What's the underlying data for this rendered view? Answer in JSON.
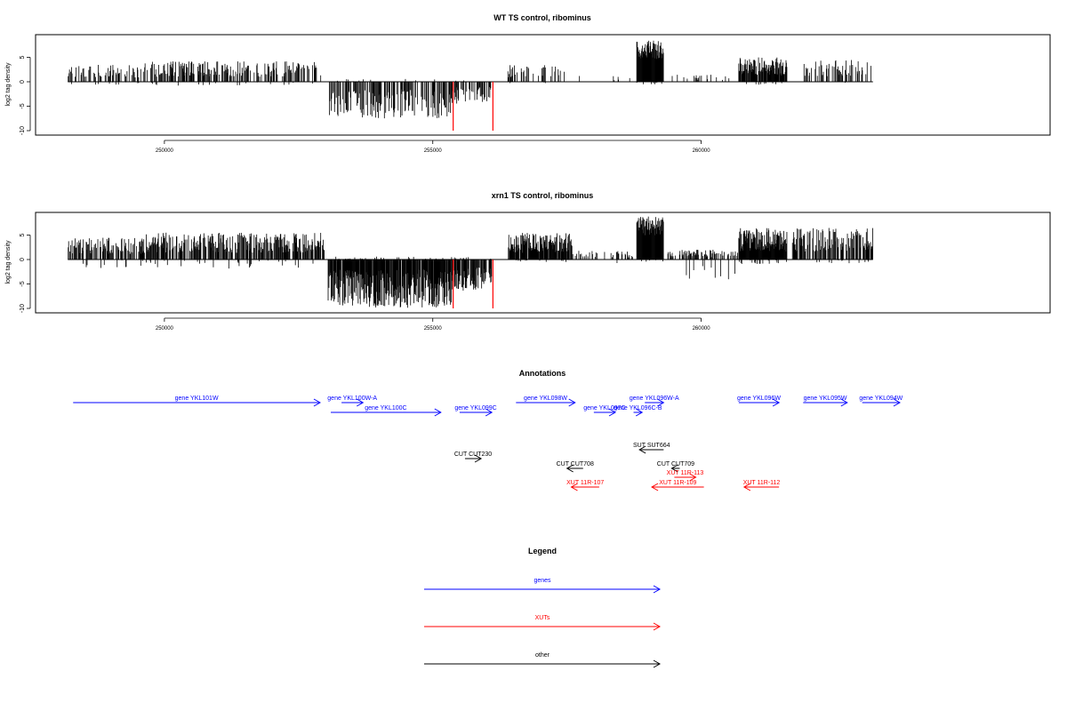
{
  "colors": {
    "genes": "#0000ff",
    "xuts": "#ff0000",
    "other": "#000000",
    "signal": "#000000",
    "highlight": "#ff0000"
  },
  "chart_data": [
    {
      "type": "bar",
      "title": "WT TS control, ribominus",
      "ylabel": "log2 tag density",
      "ylim": [
        -10,
        10
      ],
      "yticks": [
        -10,
        -5,
        0,
        5
      ],
      "xlim": [
        247600,
        266500
      ],
      "xticks": [
        250000,
        255000,
        260000
      ],
      "xticklabels": [
        "250000",
        "255000",
        "260000"
      ],
      "baseline_range": [
        248200,
        263200
      ],
      "segments": [
        {
          "from": 248200,
          "to": 249600,
          "pos_max": 3.5,
          "neg_max": 0.6,
          "density": 0.35,
          "seed": 11
        },
        {
          "from": 249600,
          "to": 253000,
          "pos_max": 4.2,
          "neg_max": 0.8,
          "density": 0.45,
          "seed": 12
        },
        {
          "from": 253050,
          "to": 255350,
          "pos_max": 0.6,
          "neg_max": 7.5,
          "density": 0.5,
          "seed": 13,
          "neg": true
        },
        {
          "from": 255350,
          "to": 256100,
          "pos_max": 0.5,
          "neg_max": 4.5,
          "density": 0.45,
          "seed": 14,
          "neg": true
        },
        {
          "from": 256400,
          "to": 257500,
          "pos_max": 3.5,
          "neg_max": 0.4,
          "density": 0.25,
          "seed": 15
        },
        {
          "from": 257500,
          "to": 258800,
          "pos_max": 1.2,
          "neg_max": 2.0,
          "density": 0.06,
          "seed": 16
        },
        {
          "from": 258800,
          "to": 259300,
          "pos_max": 8.5,
          "neg_max": 0.5,
          "density": 1.0,
          "seed": 17,
          "dense": true
        },
        {
          "from": 259300,
          "to": 260600,
          "pos_max": 1.5,
          "neg_max": 2.2,
          "density": 0.08,
          "seed": 18
        },
        {
          "from": 260700,
          "to": 261600,
          "pos_max": 5.0,
          "neg_max": 0.6,
          "density": 0.9,
          "seed": 19
        },
        {
          "from": 261900,
          "to": 263200,
          "pos_max": 4.5,
          "neg_max": 0.5,
          "density": 0.35,
          "seed": 20
        }
      ],
      "highlights": [
        {
          "x": 255380,
          "y": -10
        },
        {
          "x": 256120,
          "y": -10
        }
      ]
    },
    {
      "type": "bar",
      "title": "xrn1 TS control, ribominus",
      "ylabel": "log2 tag density",
      "ylim": [
        -10,
        10
      ],
      "yticks": [
        -10,
        -5,
        0,
        5
      ],
      "xlim": [
        247600,
        266500
      ],
      "xticks": [
        250000,
        255000,
        260000
      ],
      "xticklabels": [
        "250000",
        "255000",
        "260000"
      ],
      "baseline_range": [
        248200,
        263200
      ],
      "segments": [
        {
          "from": 248200,
          "to": 249600,
          "pos_max": 4.5,
          "neg_max": 1.8,
          "density": 0.55,
          "seed": 31
        },
        {
          "from": 249600,
          "to": 253000,
          "pos_max": 5.5,
          "neg_max": 2.0,
          "density": 0.65,
          "seed": 32
        },
        {
          "from": 253050,
          "to": 255350,
          "pos_max": 0.6,
          "neg_max": 10.0,
          "density": 0.9,
          "seed": 33,
          "neg": true
        },
        {
          "from": 255350,
          "to": 256100,
          "pos_max": 0.5,
          "neg_max": 6.5,
          "density": 0.7,
          "seed": 34,
          "neg": true
        },
        {
          "from": 256400,
          "to": 257600,
          "pos_max": 5.5,
          "neg_max": 0.6,
          "density": 0.9,
          "seed": 35
        },
        {
          "from": 257600,
          "to": 258800,
          "pos_max": 1.8,
          "neg_max": 3.0,
          "density": 0.25,
          "seed": 36
        },
        {
          "from": 258800,
          "to": 259300,
          "pos_max": 9.0,
          "neg_max": 0.5,
          "density": 1.0,
          "seed": 37,
          "dense": true
        },
        {
          "from": 259300,
          "to": 260700,
          "pos_max": 2.0,
          "neg_max": 4.5,
          "density": 0.35,
          "seed": 38
        },
        {
          "from": 260700,
          "to": 261600,
          "pos_max": 6.5,
          "neg_max": 1.0,
          "density": 1.0,
          "seed": 39
        },
        {
          "from": 261700,
          "to": 263200,
          "pos_max": 6.5,
          "neg_max": 0.8,
          "density": 0.6,
          "seed": 40
        }
      ],
      "highlights": [
        {
          "x": 255380,
          "y": -10
        },
        {
          "x": 256120,
          "y": -10
        }
      ]
    }
  ],
  "annotations": {
    "title": "Annotations",
    "xlim": [
      247600,
      266500
    ],
    "items": [
      {
        "label": "gene YKL101W",
        "from": 248300,
        "to": 252900,
        "lane": 0,
        "cls": "genes"
      },
      {
        "label": "gene YKL100W-A",
        "from": 253300,
        "to": 253700,
        "lane": 0,
        "cls": "genes"
      },
      {
        "label": "gene YKL100C",
        "from": 253100,
        "to": 255150,
        "lane": 1,
        "cls": "genes"
      },
      {
        "label": "gene YKL099C",
        "from": 255500,
        "to": 256100,
        "lane": 1,
        "cls": "genes"
      },
      {
        "label": "gene YKL098W",
        "from": 256550,
        "to": 257650,
        "lane": 0,
        "cls": "genes"
      },
      {
        "label": "gene YKL097C",
        "from": 258000,
        "to": 258400,
        "lane": 1,
        "cls": "genes"
      },
      {
        "label": "gene YKL096C-B",
        "from": 258740,
        "to": 258900,
        "lane": 1,
        "cls": "genes"
      },
      {
        "label": "gene YKL096W-A",
        "from": 258950,
        "to": 259300,
        "lane": 0,
        "cls": "genes"
      },
      {
        "label": "gene YKL096W",
        "from": 260700,
        "to": 261450,
        "lane": 0,
        "cls": "genes"
      },
      {
        "label": "gene YKL095W",
        "from": 261900,
        "to": 262720,
        "lane": 0,
        "cls": "genes"
      },
      {
        "label": "gene YKL094W",
        "from": 263000,
        "to": 263700,
        "lane": 0,
        "cls": "genes"
      },
      {
        "label": "SUT SUT664",
        "from": 259300,
        "to": 258850,
        "lane": 3,
        "cls": "other"
      },
      {
        "label": "CUT CUT230",
        "from": 255600,
        "to": 255900,
        "lane": 4,
        "cls": "other"
      },
      {
        "label": "CUT CUT708",
        "from": 257800,
        "to": 257500,
        "lane": 5,
        "cls": "other"
      },
      {
        "label": "CUT CUT709",
        "from": 259600,
        "to": 259450,
        "lane": 5,
        "cls": "other"
      },
      {
        "label": "XUT 11R-113",
        "from": 259500,
        "to": 259900,
        "lane": 6,
        "cls": "xuts"
      },
      {
        "label": "XUT 11R-107",
        "from": 258100,
        "to": 257580,
        "lane": 7,
        "cls": "xuts"
      },
      {
        "label": "XUT 11R-109",
        "from": 260050,
        "to": 259080,
        "lane": 7,
        "cls": "xuts"
      },
      {
        "label": "XUT 11R-112",
        "from": 261450,
        "to": 260800,
        "lane": 7,
        "cls": "xuts"
      }
    ]
  },
  "legend": {
    "title": "Legend",
    "entries": [
      {
        "label": "genes",
        "cls": "genes"
      },
      {
        "label": "XUTs",
        "cls": "xuts"
      },
      {
        "label": "other",
        "cls": "other"
      }
    ]
  }
}
